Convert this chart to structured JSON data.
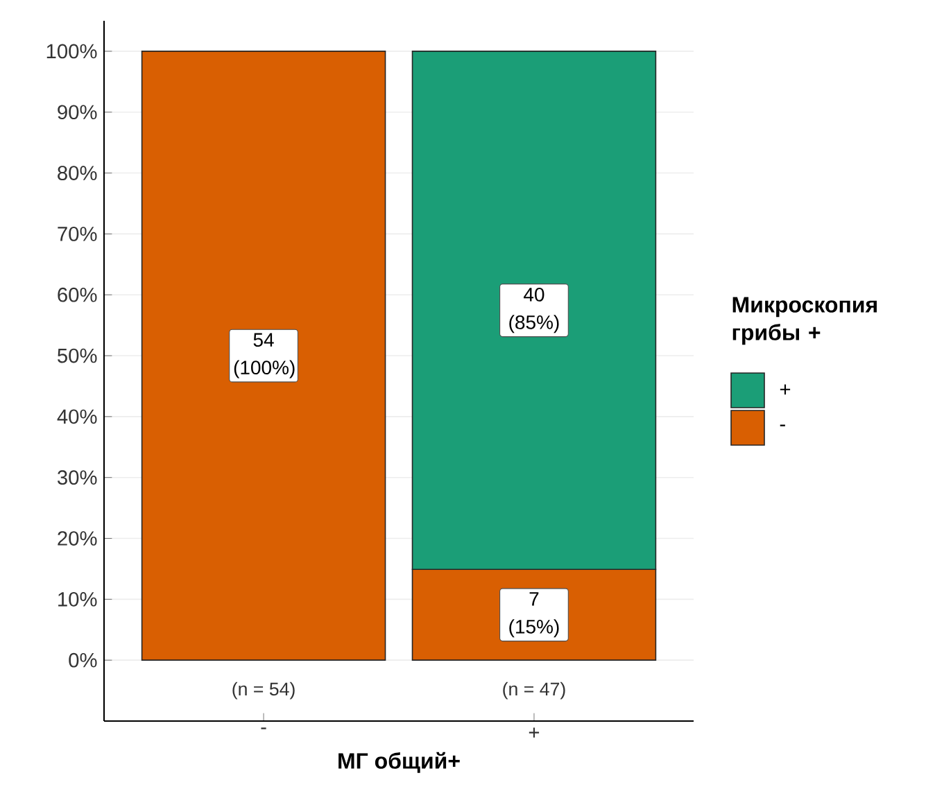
{
  "chart_data": {
    "type": "bar",
    "stacked": true,
    "xlabel": "МГ общий+",
    "legend_title": "Микроскопия грибы +",
    "legend": "right",
    "grid": "y",
    "categories": [
      "-",
      "+"
    ],
    "series": [
      {
        "name": "-",
        "color": "#d95f02",
        "values": [
          100,
          14.9
        ],
        "value_labels": [
          "54 (100%)",
          "7 (15%)"
        ]
      },
      {
        "name": "+",
        "color": "#1b9e77",
        "values": [
          null,
          85.1
        ],
        "value_labels": [
          null,
          "40 (85%)"
        ]
      }
    ],
    "ylim": [
      -10,
      105
    ],
    "yticks": [
      {
        "value": 0,
        "label": "0%"
      },
      {
        "value": 10,
        "label": "10%"
      },
      {
        "value": 20,
        "label": "20%"
      },
      {
        "value": 30,
        "label": "30%"
      },
      {
        "value": 40,
        "label": "40%"
      },
      {
        "value": 50,
        "label": "50%"
      },
      {
        "value": 60,
        "label": "60%"
      },
      {
        "value": 70,
        "label": "70%"
      },
      {
        "value": 80,
        "label": "80%"
      },
      {
        "value": 90,
        "label": "90%"
      },
      {
        "value": 100,
        "label": "100%"
      }
    ],
    "annotations": [
      "(n = 54)",
      "(n = 47)"
    ]
  }
}
